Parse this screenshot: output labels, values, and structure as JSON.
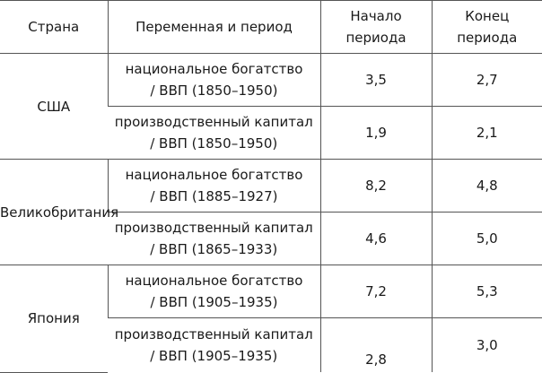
{
  "header": {
    "country": "Страна",
    "variable": "Переменная и период",
    "start_line1": "Начало",
    "start_line2": "периода",
    "end_line1": "Конец",
    "end_line2": "периода"
  },
  "rows": [
    {
      "country": "США",
      "items": [
        {
          "var_line1": "национальное богатство",
          "var_line2": "/ ВВП (1850–1950)",
          "start": "3,5",
          "end": "2,7"
        },
        {
          "var_line1": "производственный капитал",
          "var_line2": "/ ВВП (1850–1950)",
          "start": "1,9",
          "end": "2,1"
        }
      ]
    },
    {
      "country": "Великобритания",
      "items": [
        {
          "var_line1": "национальное богатство",
          "var_line2": "/ ВВП (1885–1927)",
          "start": "8,2",
          "end": "4,8"
        },
        {
          "var_line1": "производственный капитал",
          "var_line2": "/ ВВП (1865–1933)",
          "start": "4,6",
          "end": "5,0"
        }
      ]
    },
    {
      "country": "Япония",
      "items": [
        {
          "var_line1": "национальное богатство",
          "var_line2": "/ ВВП (1905–1935)",
          "start": "7,2",
          "end": "5,3"
        },
        {
          "var_line1": "производственный капитал",
          "var_line2": "/ ВВП (1905–1935)",
          "start": "2,8",
          "end": "3,0"
        }
      ]
    }
  ]
}
